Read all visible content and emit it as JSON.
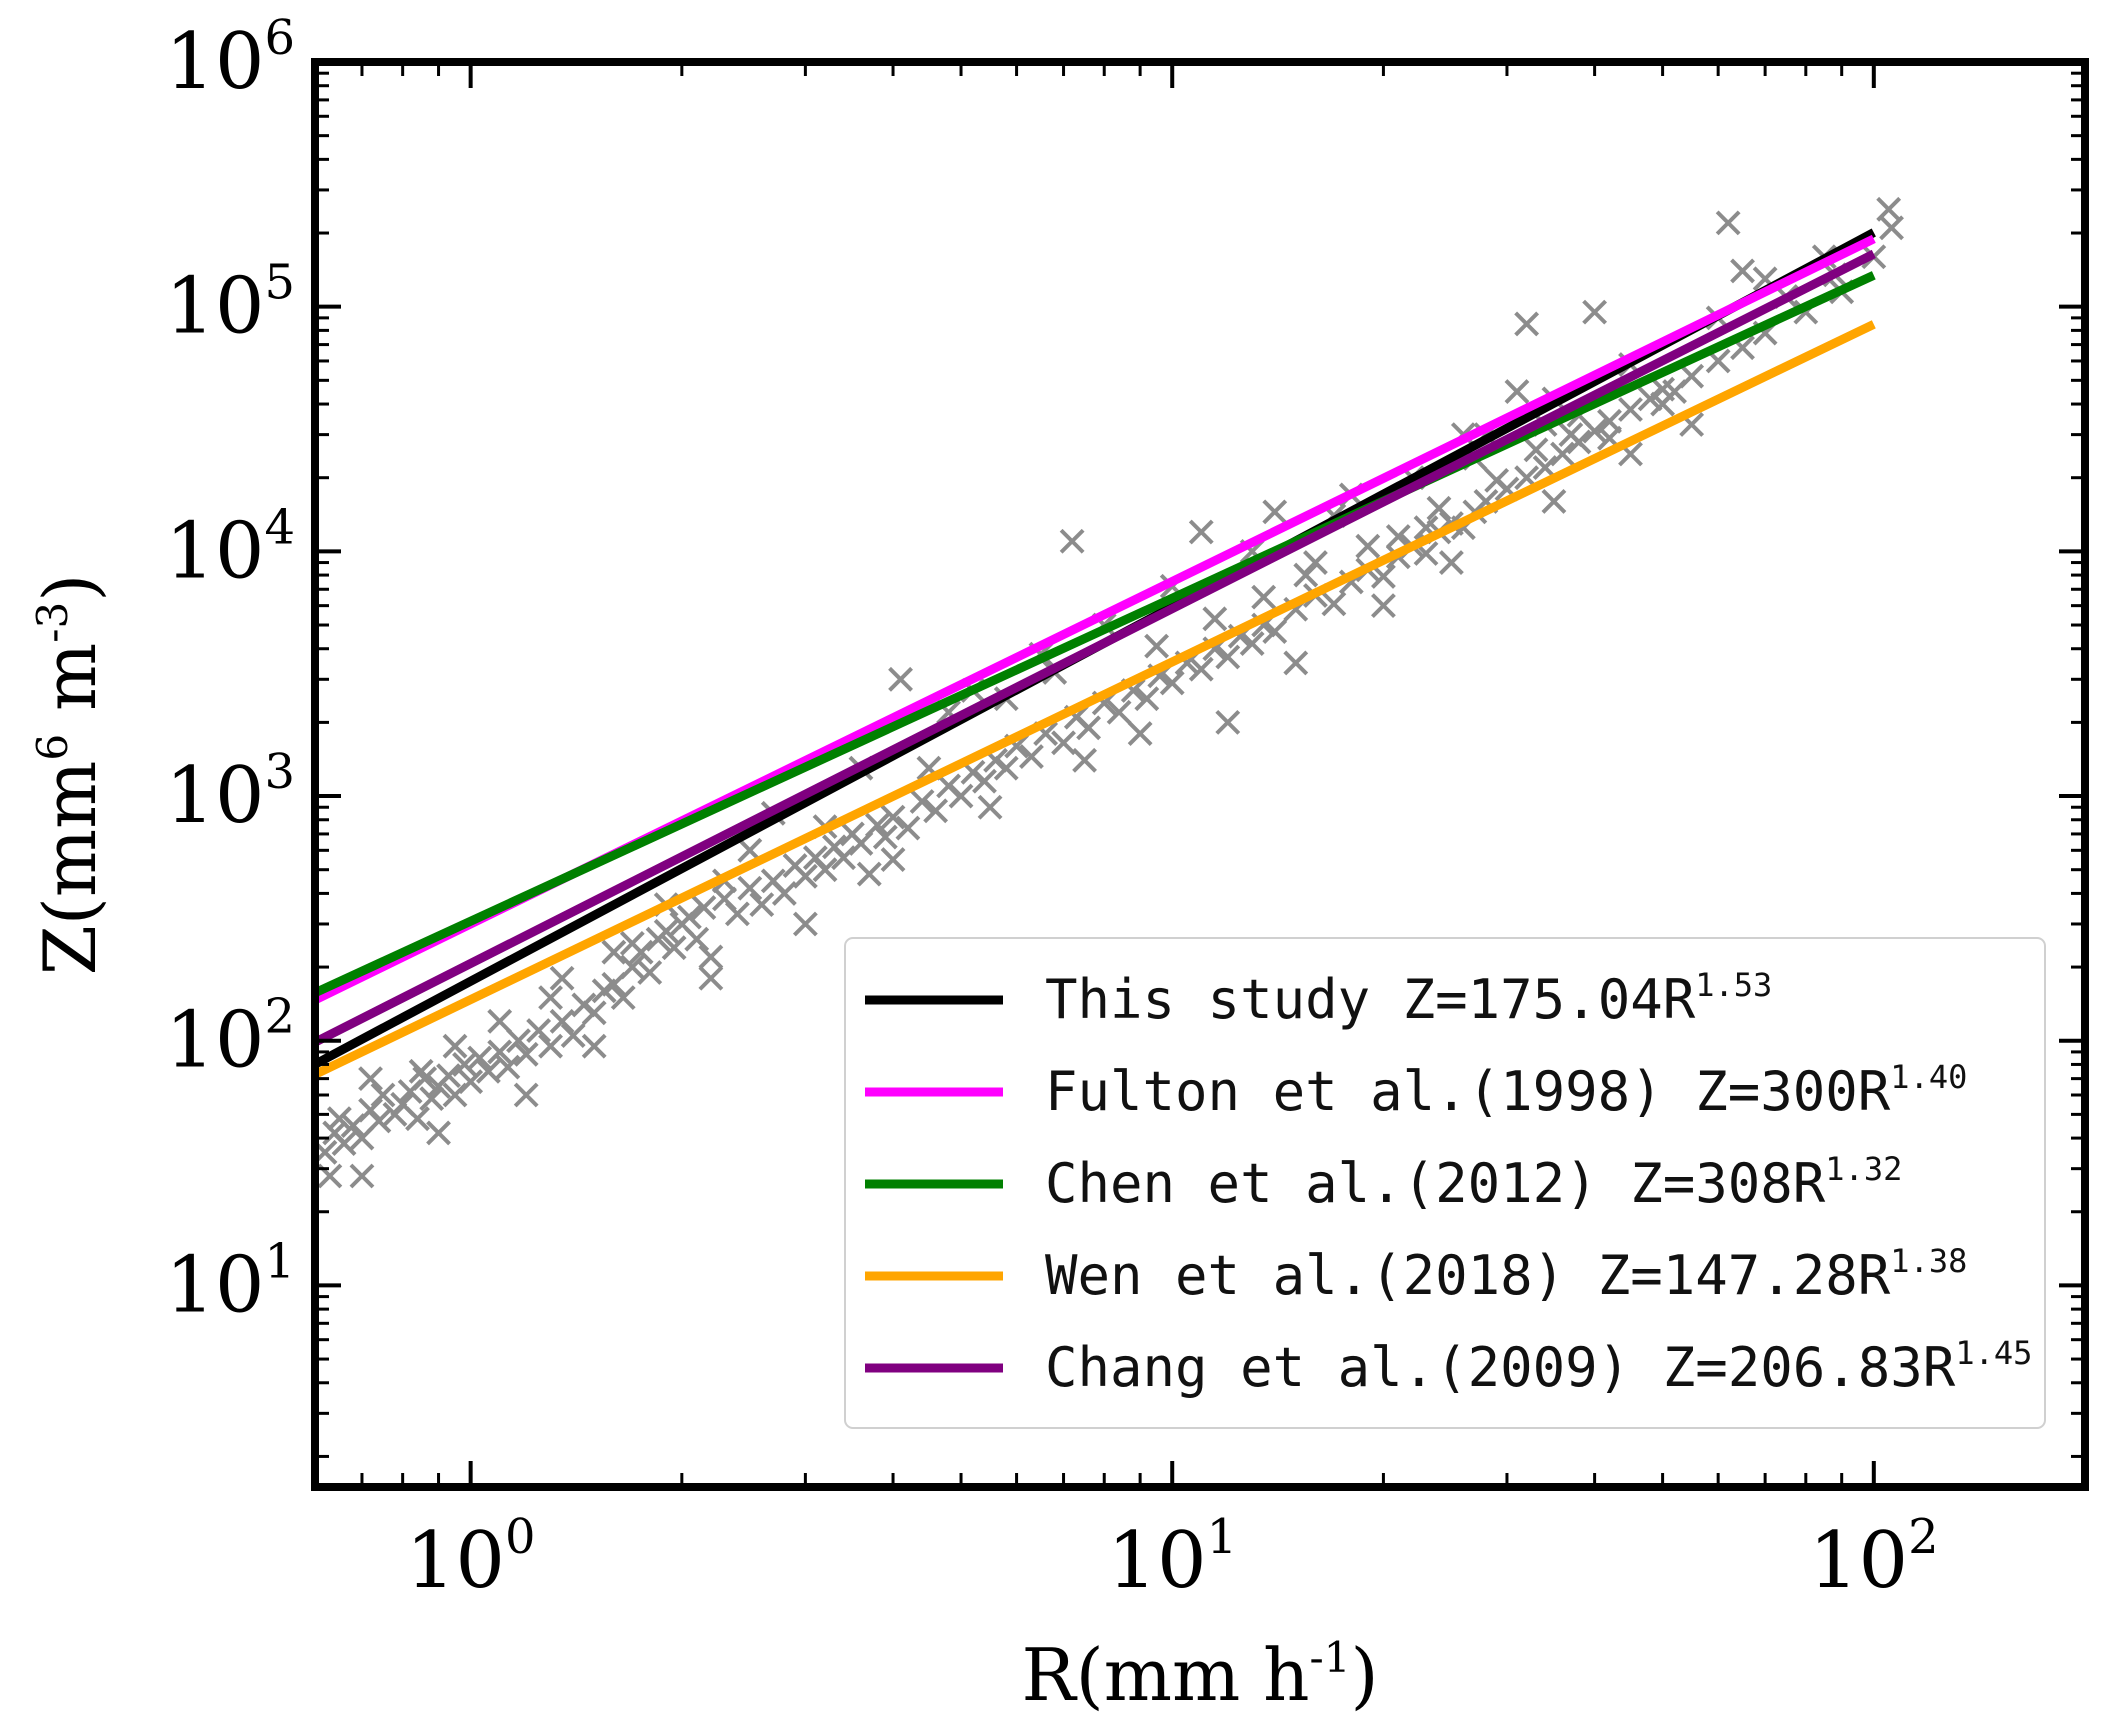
{
  "chart_data": {
    "type": "scatter",
    "title": "",
    "xscale": "log",
    "yscale": "log",
    "xlim": [
      0.6,
      200
    ],
    "ylim": [
      1.5,
      1000000
    ],
    "xlabel": {
      "text": "R(mm h",
      "sup": "-1",
      "close": ")"
    },
    "ylabel": {
      "text": "Z(mm",
      "sup1": "6",
      "mid": " m",
      "sup2": "-3",
      "close": ")"
    },
    "xticks": [
      {
        "value": 1,
        "base": "10",
        "exp": "0"
      },
      {
        "value": 10,
        "base": "10",
        "exp": "1"
      },
      {
        "value": 100,
        "base": "10",
        "exp": "2"
      }
    ],
    "yticks": [
      {
        "value": 10,
        "base": "10",
        "exp": "1"
      },
      {
        "value": 100,
        "base": "10",
        "exp": "2"
      },
      {
        "value": 1000,
        "base": "10",
        "exp": "3"
      },
      {
        "value": 10000,
        "base": "10",
        "exp": "4"
      },
      {
        "value": 100000,
        "base": "10",
        "exp": "5"
      },
      {
        "value": 1000000,
        "base": "10",
        "exp": "6"
      }
    ],
    "scatter": {
      "marker": "x",
      "color": "#8c8c8c",
      "points": [
        [
          0.62,
          35
        ],
        [
          0.63,
          28
        ],
        [
          0.64,
          42
        ],
        [
          0.65,
          48
        ],
        [
          0.66,
          38
        ],
        [
          0.68,
          45
        ],
        [
          0.7,
          40
        ],
        [
          0.72,
          52
        ],
        [
          0.74,
          47
        ],
        [
          0.75,
          60
        ],
        [
          0.78,
          50
        ],
        [
          0.8,
          55
        ],
        [
          0.82,
          62
        ],
        [
          0.84,
          48
        ],
        [
          0.86,
          70
        ],
        [
          0.88,
          58
        ],
        [
          0.9,
          65
        ],
        [
          0.93,
          72
        ],
        [
          0.95,
          60
        ],
        [
          0.98,
          80
        ],
        [
          1.0,
          68
        ],
        [
          1.03,
          85
        ],
        [
          1.06,
          75
        ],
        [
          1.1,
          90
        ],
        [
          1.13,
          78
        ],
        [
          1.17,
          100
        ],
        [
          1.2,
          88
        ],
        [
          1.25,
          110
        ],
        [
          1.3,
          95
        ],
        [
          1.35,
          120
        ],
        [
          1.4,
          105
        ],
        [
          1.45,
          140
        ],
        [
          1.5,
          130
        ],
        [
          1.55,
          160
        ],
        [
          1.6,
          170
        ],
        [
          1.65,
          150
        ],
        [
          1.7,
          200
        ],
        [
          1.75,
          230
        ],
        [
          1.8,
          190
        ],
        [
          1.85,
          260
        ],
        [
          1.9,
          280
        ],
        [
          1.95,
          240
        ],
        [
          2.0,
          300
        ],
        [
          2.05,
          320
        ],
        [
          2.1,
          260
        ],
        [
          2.15,
          350
        ],
        [
          2.2,
          220
        ],
        [
          2.3,
          380
        ],
        [
          2.4,
          330
        ],
        [
          2.5,
          420
        ],
        [
          2.6,
          360
        ],
        [
          2.7,
          450
        ],
        [
          2.8,
          400
        ],
        [
          2.9,
          520
        ],
        [
          3.0,
          470
        ],
        [
          3.1,
          560
        ],
        [
          3.2,
          500
        ],
        [
          3.3,
          620
        ],
        [
          3.4,
          560
        ],
        [
          3.5,
          700
        ],
        [
          3.6,
          640
        ],
        [
          3.7,
          480
        ],
        [
          3.8,
          760
        ],
        [
          3.9,
          680
        ],
        [
          4.0,
          820
        ],
        [
          4.2,
          740
        ],
        [
          4.4,
          950
        ],
        [
          4.6,
          870
        ],
        [
          4.8,
          1100
        ],
        [
          5.0,
          1000
        ],
        [
          5.2,
          1250
        ],
        [
          5.4,
          1150
        ],
        [
          5.6,
          1400
        ],
        [
          5.8,
          1300
        ],
        [
          6.0,
          1600
        ],
        [
          6.3,
          1450
        ],
        [
          6.6,
          1800
        ],
        [
          7.0,
          1650
        ],
        [
          7.3,
          2100
        ],
        [
          7.6,
          1900
        ],
        [
          8.0,
          2400
        ],
        [
          8.4,
          2200
        ],
        [
          8.8,
          2700
        ],
        [
          9.2,
          2500
        ],
        [
          9.6,
          3100
        ],
        [
          10,
          2900
        ],
        [
          10.5,
          3500
        ],
        [
          11,
          3300
        ],
        [
          11.5,
          4000
        ],
        [
          12,
          3700
        ],
        [
          12.5,
          4500
        ],
        [
          13,
          4200
        ],
        [
          13.5,
          5000
        ],
        [
          14,
          4700
        ],
        [
          15,
          5800
        ],
        [
          16,
          6600
        ],
        [
          17,
          6100
        ],
        [
          18,
          7500
        ],
        [
          19,
          8400
        ],
        [
          20,
          7900
        ],
        [
          21,
          9500
        ],
        [
          22,
          10500
        ],
        [
          23,
          9800
        ],
        [
          24,
          12000
        ],
        [
          25,
          13000
        ],
        [
          26,
          12500
        ],
        [
          27,
          14500
        ],
        [
          28,
          16000
        ],
        [
          30,
          18000
        ],
        [
          32,
          20000
        ],
        [
          34,
          22000
        ],
        [
          36,
          25000
        ],
        [
          38,
          28000
        ],
        [
          40,
          31000
        ],
        [
          42,
          34000
        ],
        [
          45,
          38000
        ],
        [
          48,
          42000
        ],
        [
          50,
          46000
        ],
        [
          55,
          52000
        ],
        [
          60,
          60000
        ],
        [
          65,
          68000
        ],
        [
          70,
          78000
        ],
        [
          80,
          95000
        ],
        [
          90,
          115000
        ],
        [
          100,
          160000
        ],
        [
          0.7,
          28
        ],
        [
          0.9,
          42
        ],
        [
          1.2,
          60
        ],
        [
          1.5,
          95
        ],
        [
          2.2,
          180
        ],
        [
          3.0,
          300
        ],
        [
          4.0,
          550
        ],
        [
          5.5,
          900
        ],
        [
          7.5,
          1400
        ],
        [
          9.0,
          1800
        ],
        [
          12,
          2000
        ],
        [
          15,
          3500
        ],
        [
          20,
          6000
        ],
        [
          25,
          9000
        ],
        [
          35,
          16000
        ],
        [
          45,
          25000
        ],
        [
          55,
          33000
        ],
        [
          0.72,
          70
        ],
        [
          0.95,
          95
        ],
        [
          1.3,
          150
        ],
        [
          1.7,
          250
        ],
        [
          2.3,
          450
        ],
        [
          3.2,
          750
        ],
        [
          4.5,
          1300
        ],
        [
          5.2,
          2700
        ],
        [
          6.5,
          3800
        ],
        [
          8.0,
          5000
        ],
        [
          10,
          7200
        ],
        [
          13,
          10000
        ],
        [
          17,
          14000
        ],
        [
          22,
          20000
        ],
        [
          28,
          30000
        ],
        [
          35,
          42000
        ],
        [
          45,
          58000
        ],
        [
          60,
          90000
        ],
        [
          70,
          130000
        ],
        [
          85,
          160000
        ],
        [
          105,
          250000
        ],
        [
          106,
          210000
        ],
        [
          62,
          220000
        ],
        [
          65,
          140000
        ],
        [
          32,
          85000
        ],
        [
          40,
          95000
        ],
        [
          7.2,
          11000
        ],
        [
          11,
          12000
        ],
        [
          14,
          14500
        ],
        [
          18,
          17000
        ],
        [
          26,
          30000
        ],
        [
          31,
          45000
        ],
        [
          27,
          24000
        ],
        [
          34,
          33000
        ],
        [
          52,
          45000
        ],
        [
          38,
          36000
        ],
        [
          16,
          9000
        ],
        [
          19,
          10500
        ],
        [
          23,
          12500
        ],
        [
          29,
          19500
        ],
        [
          42,
          29000
        ],
        [
          50,
          40000
        ],
        [
          75,
          110000
        ],
        [
          88,
          135000
        ],
        [
          4.1,
          3000
        ],
        [
          4.8,
          2200
        ],
        [
          5.8,
          2500
        ],
        [
          6.8,
          3200
        ],
        [
          3.6,
          1300
        ],
        [
          2.7,
          850
        ],
        [
          2.5,
          600
        ],
        [
          1.9,
          360
        ],
        [
          1.6,
          230
        ],
        [
          1.35,
          180
        ],
        [
          1.1,
          120
        ],
        [
          0.85,
          75
        ],
        [
          9.5,
          4100
        ],
        [
          11.5,
          5300
        ],
        [
          13.5,
          6500
        ],
        [
          15.5,
          8000
        ],
        [
          21,
          11500
        ],
        [
          24,
          15000
        ],
        [
          33,
          26000
        ],
        [
          37,
          30000
        ]
      ]
    },
    "series": [
      {
        "name": "This study",
        "formula": "Z=175.04R",
        "exp": "1.53",
        "a": 175.04,
        "b": 1.53,
        "color": "#000000"
      },
      {
        "name": "Fulton et al.(1998)",
        "formula": "Z=300R",
        "exp": "1.40",
        "a": 300,
        "b": 1.4,
        "color": "#ff00ff"
      },
      {
        "name": "Chen et al.(2012)",
        "formula": "Z=308R",
        "exp": "1.32",
        "a": 308,
        "b": 1.32,
        "color": "#008000"
      },
      {
        "name": "Wen et al.(2018)",
        "formula": "Z=147.28R",
        "exp": "1.38",
        "a": 147.28,
        "b": 1.38,
        "color": "#ffa500"
      },
      {
        "name": "Chang et al.(2009)",
        "formula": "Z=206.83R",
        "exp": "1.45",
        "a": 206.83,
        "b": 1.45,
        "color": "#800080"
      }
    ],
    "series_range": [
      0.6,
      100
    ],
    "legend": {
      "position": "lower-right"
    }
  }
}
